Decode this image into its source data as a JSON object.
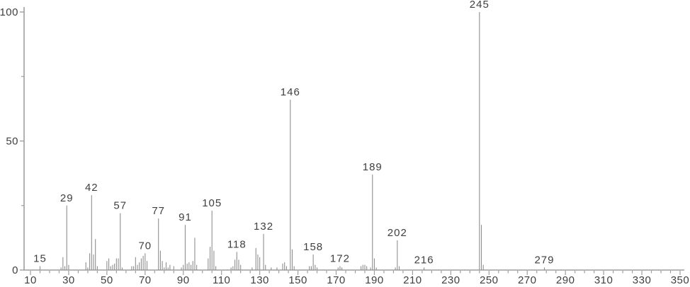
{
  "chart_data": {
    "type": "bar",
    "subtype": "mass-spectrum",
    "title": "",
    "xlabel": "",
    "ylabel": "",
    "xlim": [
      6,
      352
    ],
    "ylim": [
      0,
      100
    ],
    "x_major_tick_labels": [
      10,
      30,
      50,
      70,
      90,
      110,
      130,
      150,
      170,
      190,
      210,
      230,
      250,
      270,
      290,
      310,
      330,
      350
    ],
    "x_minor_tick_step": 5,
    "y_major_tick_labels": [
      0,
      50,
      100
    ],
    "y_minor_ticks": [
      25,
      75
    ],
    "grid": false,
    "legend": "none",
    "peaks_mz_intensity": [
      [
        15,
        1.5
      ],
      [
        26,
        1
      ],
      [
        27,
        5
      ],
      [
        28,
        1.5
      ],
      [
        29,
        25
      ],
      [
        30,
        2
      ],
      [
        39,
        3
      ],
      [
        40,
        1
      ],
      [
        41,
        6.5
      ],
      [
        42,
        29
      ],
      [
        43,
        6
      ],
      [
        44,
        12
      ],
      [
        45,
        1.5
      ],
      [
        50,
        3.5
      ],
      [
        51,
        4.5
      ],
      [
        52,
        1.5
      ],
      [
        53,
        2
      ],
      [
        54,
        2.5
      ],
      [
        55,
        4.5
      ],
      [
        56,
        4.5
      ],
      [
        57,
        22
      ],
      [
        58,
        1
      ],
      [
        63,
        1.5
      ],
      [
        64,
        1.5
      ],
      [
        65,
        5
      ],
      [
        66,
        2
      ],
      [
        67,
        3
      ],
      [
        68,
        4.5
      ],
      [
        69,
        5.5
      ],
      [
        70,
        6.5
      ],
      [
        71,
        3.5
      ],
      [
        77,
        20
      ],
      [
        78,
        7.5
      ],
      [
        79,
        3.5
      ],
      [
        80,
        1
      ],
      [
        81,
        3
      ],
      [
        82,
        1
      ],
      [
        83,
        2
      ],
      [
        85,
        1.5
      ],
      [
        89,
        1
      ],
      [
        90,
        2
      ],
      [
        91,
        17.5
      ],
      [
        92,
        2.5
      ],
      [
        93,
        3
      ],
      [
        94,
        2
      ],
      [
        95,
        3.5
      ],
      [
        96,
        12.5
      ],
      [
        97,
        2
      ],
      [
        103,
        4.5
      ],
      [
        104,
        9
      ],
      [
        105,
        23
      ],
      [
        106,
        7.5
      ],
      [
        107,
        1.5
      ],
      [
        115,
        1
      ],
      [
        116,
        1.5
      ],
      [
        117,
        4
      ],
      [
        118,
        7
      ],
      [
        119,
        4
      ],
      [
        120,
        2
      ],
      [
        126,
        1
      ],
      [
        128,
        8.5
      ],
      [
        129,
        6
      ],
      [
        130,
        5
      ],
      [
        132,
        14
      ],
      [
        133,
        2
      ],
      [
        136,
        1
      ],
      [
        139,
        1
      ],
      [
        142,
        2.5
      ],
      [
        143,
        3
      ],
      [
        144,
        1.5
      ],
      [
        146,
        66
      ],
      [
        147,
        8
      ],
      [
        148,
        1.5
      ],
      [
        156,
        1.5
      ],
      [
        157,
        1.5
      ],
      [
        158,
        6
      ],
      [
        159,
        2
      ],
      [
        160,
        1
      ],
      [
        171,
        1
      ],
      [
        172,
        1.5
      ],
      [
        173,
        1
      ],
      [
        183,
        1.5
      ],
      [
        184,
        2
      ],
      [
        185,
        2
      ],
      [
        186,
        1.5
      ],
      [
        188,
        1
      ],
      [
        189,
        37
      ],
      [
        190,
        4.5
      ],
      [
        191,
        1
      ],
      [
        201,
        1
      ],
      [
        202,
        11.5
      ],
      [
        203,
        1.5
      ],
      [
        216,
        1
      ],
      [
        245,
        100
      ],
      [
        246,
        17.5
      ],
      [
        247,
        2
      ],
      [
        279,
        1
      ]
    ],
    "labeled_peaks": [
      15,
      29,
      42,
      57,
      70,
      77,
      91,
      105,
      118,
      132,
      146,
      158,
      172,
      189,
      202,
      216,
      245,
      279
    ],
    "colors": {
      "bar": "#8f8f8f",
      "axis": "#9e9e9e",
      "text": "#3f3f3f",
      "background": "#ffffff"
    }
  }
}
